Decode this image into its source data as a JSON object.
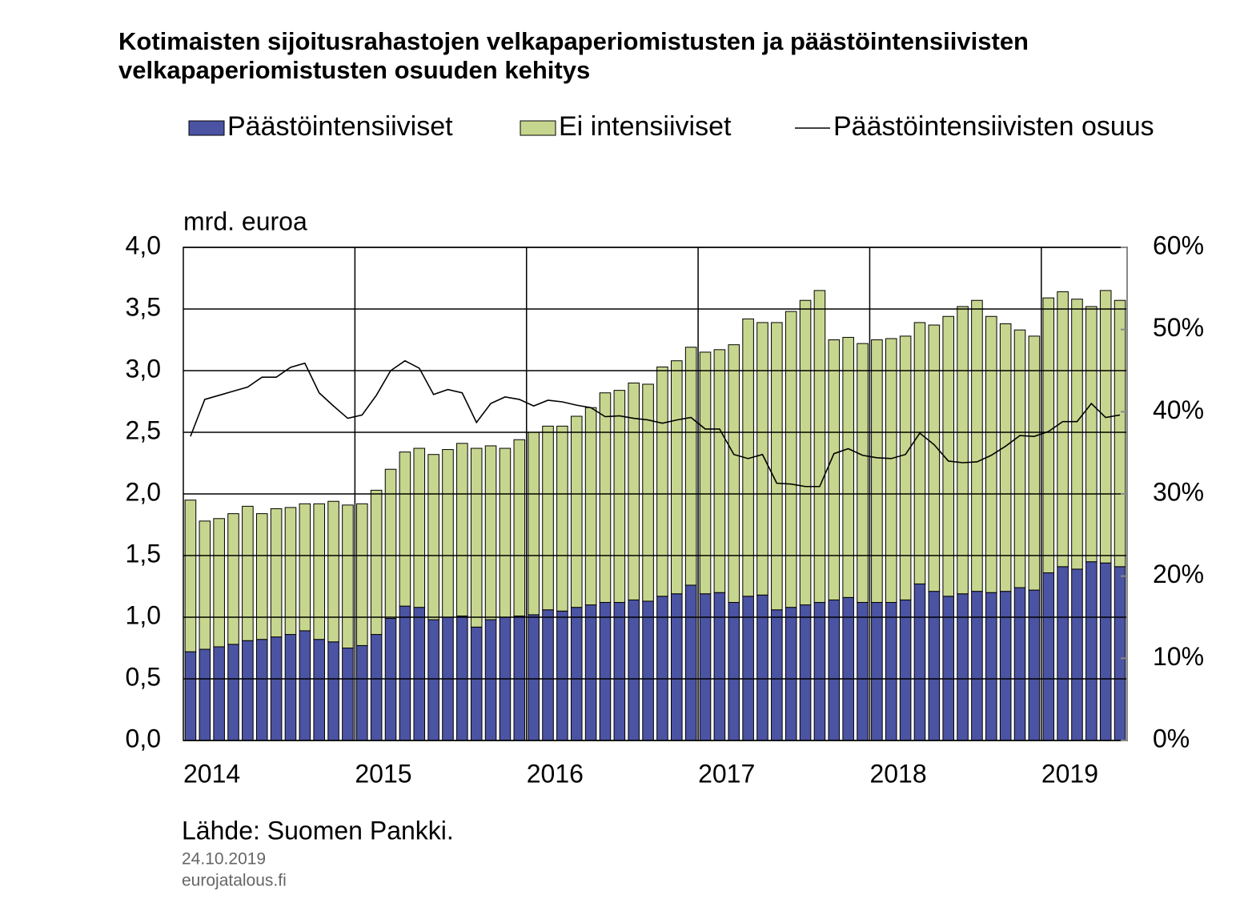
{
  "chart_data": {
    "type": "bar-line",
    "title": "Kotimaisten sijoitusrahastojen velkapaperiomistusten ja päästöintensiivisten",
    "title_line2": "velkapaperiomistusten osuuden kehitys",
    "y_label": "mrd. euroa",
    "source": "Lähde: Suomen Pankki.",
    "date": "24.10.2019",
    "site": "eurojatalous.fi",
    "categories": [
      "2014",
      null,
      null,
      null,
      null,
      null,
      null,
      null,
      null,
      null,
      null,
      null,
      "2015",
      null,
      null,
      null,
      null,
      null,
      null,
      null,
      null,
      null,
      null,
      null,
      "2016",
      null,
      null,
      null,
      null,
      null,
      null,
      null,
      null,
      null,
      null,
      null,
      "2017",
      null,
      null,
      null,
      null,
      null,
      null,
      null,
      null,
      null,
      null,
      null,
      "2018",
      null,
      null,
      null,
      null,
      null,
      null,
      null,
      null,
      null,
      null,
      null,
      "2019",
      null,
      null,
      null,
      null,
      null
    ],
    "series": [
      {
        "name": "Päästöintensiiviset",
        "color": "#4b53a3",
        "stack": true,
        "values": [
          0.72,
          0.74,
          0.76,
          0.78,
          0.81,
          0.82,
          0.84,
          0.86,
          0.89,
          0.82,
          0.8,
          0.75,
          0.77,
          0.86,
          0.99,
          1.09,
          1.08,
          0.98,
          1.0,
          1.01,
          0.92,
          0.98,
          1.0,
          1.01,
          1.02,
          1.06,
          1.05,
          1.08,
          1.1,
          1.12,
          1.12,
          1.14,
          1.13,
          1.17,
          1.19,
          1.26,
          1.19,
          1.2,
          1.12,
          1.17,
          1.18,
          1.06,
          1.08,
          1.1,
          1.12,
          1.14,
          1.16,
          1.12,
          1.12,
          1.12,
          1.14,
          1.27,
          1.21,
          1.17,
          1.19,
          1.21,
          1.2,
          1.21,
          1.24,
          1.22,
          1.36,
          1.41,
          1.39,
          1.45,
          1.44,
          1.41
        ]
      },
      {
        "name": "Ei intensiiviset",
        "color": "#c7d68e",
        "stack": true,
        "values": [
          1.23,
          1.04,
          1.04,
          1.06,
          1.09,
          1.02,
          1.04,
          1.03,
          1.03,
          1.1,
          1.14,
          1.16,
          1.15,
          1.17,
          1.21,
          1.25,
          1.29,
          1.34,
          1.36,
          1.4,
          1.45,
          1.41,
          1.37,
          1.43,
          1.48,
          1.49,
          1.5,
          1.55,
          1.6,
          1.7,
          1.72,
          1.76,
          1.76,
          1.86,
          1.89,
          1.93,
          1.96,
          1.97,
          2.09,
          2.25,
          2.21,
          2.33,
          2.4,
          2.47,
          2.53,
          2.11,
          2.11,
          2.1,
          2.13,
          2.14,
          2.14,
          2.12,
          2.16,
          2.27,
          2.33,
          2.36,
          2.24,
          2.17,
          2.09,
          2.06,
          2.23,
          2.23,
          2.19,
          2.07,
          2.21,
          2.16
        ]
      },
      {
        "name": "Päästöintensiivisten osuus",
        "color": "#000000",
        "axis": "y2",
        "kind": "line",
        "values": [
          37,
          41.5,
          42,
          42.5,
          43,
          44.2,
          44.2,
          45.4,
          45.9,
          42.3,
          40.7,
          39.2,
          39.6,
          42,
          45,
          46.2,
          45.3,
          42.1,
          42.7,
          42.3,
          38.7,
          41,
          41.8,
          41.5,
          40.7,
          41.4,
          41.2,
          40.8,
          40.5,
          39.4,
          39.5,
          39.2,
          39,
          38.6,
          39,
          39.3,
          37.9,
          37.9,
          34.8,
          34.3,
          34.8,
          31.3,
          31.2,
          30.9,
          30.9,
          34.9,
          35.5,
          34.7,
          34.4,
          34.3,
          34.8,
          37.4,
          36,
          34,
          33.8,
          33.9,
          34.7,
          35.8,
          37.1,
          37,
          37.6,
          38.8,
          38.8,
          41,
          39.3,
          39.6
        ]
      }
    ],
    "ylim": [
      0,
      4
    ],
    "yticks": [
      {
        "value": 0,
        "label": "0,0"
      },
      {
        "value": 0.5,
        "label": "0,5"
      },
      {
        "value": 1,
        "label": "1,0"
      },
      {
        "value": 1.5,
        "label": "1,5"
      },
      {
        "value": 2,
        "label": "2,0"
      },
      {
        "value": 2.5,
        "label": "2,5"
      },
      {
        "value": 3,
        "label": "3,0"
      },
      {
        "value": 3.5,
        "label": "3,5"
      },
      {
        "value": 4,
        "label": "4,0"
      }
    ],
    "y2lim": [
      0,
      60
    ],
    "y2ticks": [
      {
        "value": 0,
        "label": "0%"
      },
      {
        "value": 10,
        "label": "10%"
      },
      {
        "value": 20,
        "label": "20%"
      },
      {
        "value": 30,
        "label": "30%"
      },
      {
        "value": 40,
        "label": "40%"
      },
      {
        "value": 50,
        "label": "50%"
      },
      {
        "value": 60,
        "label": "60%"
      }
    ],
    "grid": true
  }
}
